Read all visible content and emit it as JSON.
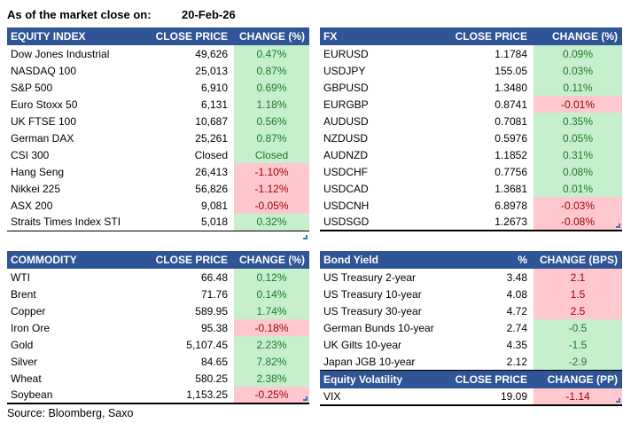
{
  "meta": {
    "as_of_label": "As of the market close on:",
    "as_of_date": "20-Feb-26",
    "source": "Source: Bloomberg, Saxo"
  },
  "colors": {
    "header_bg": "#2F5597",
    "header_text": "#FFFFFF",
    "positive_bg": "#C6EFCE",
    "positive_text": "#1F7A28",
    "negative_bg": "#FFC7CE",
    "negative_text": "#9C0006",
    "resize_handle": "#4472C4"
  },
  "tables": {
    "equity_index": {
      "headers": [
        "EQUITY INDEX",
        "CLOSE PRICE",
        "CHANGE (%)"
      ],
      "rows": [
        {
          "name": "Dow Jones Industrial",
          "value": "49,626",
          "change": "0.47%",
          "tone": "good"
        },
        {
          "name": "NASDAQ 100",
          "value": "25,013",
          "change": "0.87%",
          "tone": "good"
        },
        {
          "name": "S&P 500",
          "value": "6,910",
          "change": "0.69%",
          "tone": "good"
        },
        {
          "name": "Euro Stoxx 50",
          "value": "6,131",
          "change": "1.18%",
          "tone": "good"
        },
        {
          "name": "UK FTSE 100",
          "value": "10,687",
          "change": "0.56%",
          "tone": "good"
        },
        {
          "name": "German DAX",
          "value": "25,261",
          "change": "0.87%",
          "tone": "good"
        },
        {
          "name": "CSI 300",
          "value": "Closed",
          "change": "Closed",
          "tone": "good"
        },
        {
          "name": "Hang Seng",
          "value": "26,413",
          "change": "-1.10%",
          "tone": "bad"
        },
        {
          "name": "Nikkei 225",
          "value": "56,826",
          "change": "-1.12%",
          "tone": "bad"
        },
        {
          "name": "ASX 200",
          "value": "9,081",
          "change": "-0.05%",
          "tone": "bad"
        },
        {
          "name": "Straits Times Index STI",
          "value": "5,018",
          "change": "0.32%",
          "tone": "good"
        }
      ]
    },
    "fx": {
      "headers": [
        "FX",
        "CLOSE PRICE",
        "CHANGE (%)"
      ],
      "rows": [
        {
          "name": "EURUSD",
          "value": "1.1784",
          "change": "0.09%",
          "tone": "good"
        },
        {
          "name": "USDJPY",
          "value": "155.05",
          "change": "0.03%",
          "tone": "good"
        },
        {
          "name": "GBPUSD",
          "value": "1.3480",
          "change": "0.11%",
          "tone": "good"
        },
        {
          "name": "EURGBP",
          "value": "0.8741",
          "change": "-0.01%",
          "tone": "bad"
        },
        {
          "name": "AUDUSD",
          "value": "0.7081",
          "change": "0.35%",
          "tone": "good"
        },
        {
          "name": "NZDUSD",
          "value": "0.5976",
          "change": "0.05%",
          "tone": "good"
        },
        {
          "name": "AUDNZD",
          "value": "1.1852",
          "change": "0.31%",
          "tone": "good"
        },
        {
          "name": "USDCHF",
          "value": "0.7756",
          "change": "0.08%",
          "tone": "good"
        },
        {
          "name": "USDCAD",
          "value": "1.3681",
          "change": "0.01%",
          "tone": "good"
        },
        {
          "name": "USDCNH",
          "value": "6.8978",
          "change": "-0.03%",
          "tone": "bad"
        },
        {
          "name": "USDSGD",
          "value": "1.2673",
          "change": "-0.08%",
          "tone": "bad"
        }
      ]
    },
    "commodity": {
      "headers": [
        "COMMODITY",
        "CLOSE PRICE",
        "CHANGE (%)"
      ],
      "rows": [
        {
          "name": "WTI",
          "value": "66.48",
          "change": "0.12%",
          "tone": "good"
        },
        {
          "name": "Brent",
          "value": "71.76",
          "change": "0.14%",
          "tone": "good"
        },
        {
          "name": "Copper",
          "value": "589.95",
          "change": "1.74%",
          "tone": "good"
        },
        {
          "name": "Iron Ore",
          "value": "95.38",
          "change": "-0.18%",
          "tone": "bad"
        },
        {
          "name": "Gold",
          "value": "5,107.45",
          "change": "2.23%",
          "tone": "good"
        },
        {
          "name": "Silver",
          "value": "84.65",
          "change": "7.82%",
          "tone": "good"
        },
        {
          "name": "Wheat",
          "value": "580.25",
          "change": "2.38%",
          "tone": "good"
        },
        {
          "name": "Soybean",
          "value": "1,153.25",
          "change": "-0.25%",
          "tone": "bad"
        }
      ]
    },
    "bond_yield": {
      "headers": [
        "Bond Yield",
        "%",
        "CHANGE (BPS)"
      ],
      "rows": [
        {
          "name": "US Treasury 2-year",
          "value": "3.48",
          "change": "2.1",
          "tone": "bad"
        },
        {
          "name": "US Treasury 10-year",
          "value": "4.08",
          "change": "1.5",
          "tone": "bad"
        },
        {
          "name": "US Treasury 30-year",
          "value": "4.72",
          "change": "2.5",
          "tone": "bad"
        },
        {
          "name": "German Bunds 10-year",
          "value": "2.74",
          "change": "-0.5",
          "tone": "good"
        },
        {
          "name": "UK Gilts 10-year",
          "value": "4.35",
          "change": "-1.5",
          "tone": "good"
        },
        {
          "name": "Japan JGB 10-year",
          "value": "2.12",
          "change": "-2.9",
          "tone": "good"
        }
      ]
    },
    "equity_volatility": {
      "headers": [
        "Equity Volatility",
        "CLOSE PRICE",
        "CHANGE (PP)"
      ],
      "rows": [
        {
          "name": "VIX",
          "value": "19.09",
          "change": "-1.14",
          "tone": "bad"
        }
      ]
    }
  }
}
